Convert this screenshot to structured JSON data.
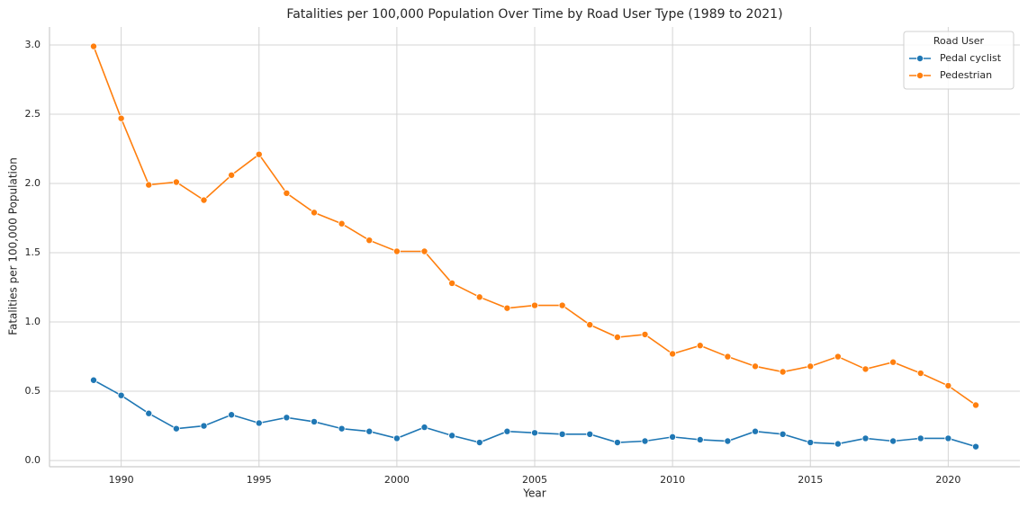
{
  "chart_data": {
    "type": "line",
    "title": "Fatalities per 100,000 Population Over Time by Road User Type (1989 to 2021)",
    "x_label": "Year",
    "y_label": "Fatalities per 100,000 Population",
    "legend_title": "Road User",
    "legend_position": "upper right",
    "grid": true,
    "x": [
      1989,
      1990,
      1991,
      1992,
      1993,
      1994,
      1995,
      1996,
      1997,
      1998,
      1999,
      2000,
      2001,
      2002,
      2003,
      2004,
      2005,
      2006,
      2007,
      2008,
      2009,
      2010,
      2011,
      2012,
      2013,
      2014,
      2015,
      2016,
      2017,
      2018,
      2019,
      2020,
      2021
    ],
    "series": [
      {
        "name": "Pedal cyclist",
        "color": "#1f77b4",
        "values": [
          0.58,
          0.47,
          0.34,
          0.23,
          0.25,
          0.33,
          0.27,
          0.31,
          0.28,
          0.23,
          0.21,
          0.16,
          0.24,
          0.18,
          0.13,
          0.21,
          0.2,
          0.19,
          0.19,
          0.13,
          0.14,
          0.17,
          0.15,
          0.14,
          0.21,
          0.19,
          0.13,
          0.12,
          0.16,
          0.14,
          0.16,
          0.16,
          0.1
        ]
      },
      {
        "name": "Pedestrian",
        "color": "#ff7f0e",
        "values": [
          2.99,
          2.47,
          1.99,
          2.01,
          1.88,
          2.06,
          2.21,
          1.93,
          1.79,
          1.71,
          1.59,
          1.51,
          1.51,
          1.28,
          1.18,
          1.1,
          1.12,
          1.12,
          0.98,
          0.89,
          0.91,
          0.77,
          0.83,
          0.75,
          0.68,
          0.64,
          0.68,
          0.75,
          0.66,
          0.71,
          0.63,
          0.54,
          0.4
        ]
      }
    ],
    "xlim": [
      1987.4,
      2022.6
    ],
    "xticks": [
      1990,
      1995,
      2000,
      2005,
      2010,
      2015,
      2020
    ],
    "ylim": [
      -0.045,
      3.13
    ],
    "yticks": [
      {
        "value": 0,
        "label": "0.0"
      },
      0.5,
      {
        "value": 1,
        "label": "1.0"
      },
      1.5,
      {
        "value": 2,
        "label": "2.0"
      },
      2.5,
      {
        "value": 3,
        "label": "3.0"
      }
    ]
  }
}
